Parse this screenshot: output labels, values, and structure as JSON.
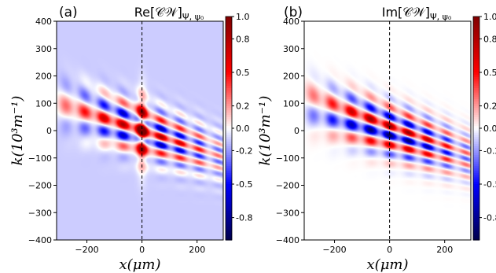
{
  "chart_data": [
    {
      "type": "heatmap",
      "panel_label": "(a)",
      "title": "Re[𝒞𝒲]",
      "title_subscript": "Ψ, ψ₀",
      "xlabel": "x(μm)",
      "ylabel": "k(10³m⁻¹)",
      "xlim": [
        -310,
        295
      ],
      "ylim": [
        -400,
        400
      ],
      "x_ticks": [
        -200,
        0,
        200
      ],
      "x_tick_labels": [
        "−200",
        "0",
        "200"
      ],
      "y_ticks": [
        -400,
        -300,
        -200,
        -100,
        0,
        100,
        200,
        300,
        400
      ],
      "y_tick_labels": [
        "−400",
        "−300",
        "−200",
        "−100",
        "0",
        "100",
        "200",
        "300",
        "400"
      ],
      "colorbar_ticks": [
        1.0,
        0.8,
        0.5,
        0.2,
        0.0,
        -0.2,
        -0.5,
        -0.8
      ],
      "colorbar_tick_labels": [
        "1.0",
        "0.8",
        "0.5",
        "0.2",
        "0.0",
        "-0.2",
        "-0.5",
        "-0.8"
      ],
      "colorbar_range": [
        -1.0,
        1.0
      ],
      "colormap": "seismic",
      "background_value": -0.1,
      "dashed_vertical_line_x": 0,
      "grid": false
    },
    {
      "type": "heatmap",
      "panel_label": "(b)",
      "title": "Im[𝒞𝒲]",
      "title_subscript": "Ψ, ψ₀",
      "xlabel": "x(μm)",
      "ylabel": "k(10³m⁻¹)",
      "xlim": [
        -310,
        295
      ],
      "ylim": [
        -400,
        400
      ],
      "x_ticks": [
        -200,
        0,
        200
      ],
      "x_tick_labels": [
        "−200",
        "0",
        "200"
      ],
      "y_ticks": [
        -400,
        -300,
        -200,
        -100,
        0,
        100,
        200,
        300,
        400
      ],
      "y_tick_labels": [
        "−400",
        "−300",
        "−200",
        "−100",
        "0",
        "100",
        "200",
        "300",
        "400"
      ],
      "colorbar_ticks": [
        1.0,
        0.8,
        0.5,
        0.2,
        0.0,
        -0.2,
        -0.5,
        -0.8
      ],
      "colorbar_tick_labels": [
        "1.0",
        "0.8",
        "0.5",
        "0.2",
        "0.0",
        "-0.2",
        "-0.5",
        "-0.8"
      ],
      "colorbar_range": [
        -1.0,
        1.0
      ],
      "colormap": "seismic",
      "background_value": 0.0,
      "dashed_vertical_line_x": 0,
      "grid": false
    }
  ]
}
